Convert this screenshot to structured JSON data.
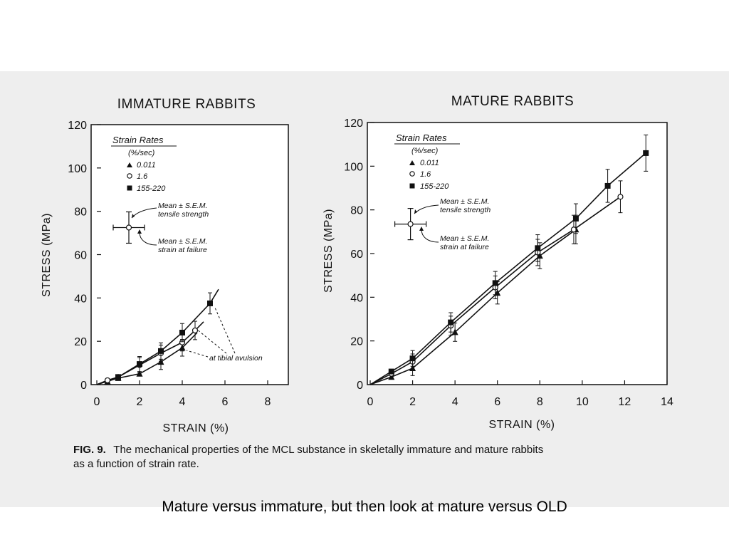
{
  "slide": {
    "subtitle": "Mature versus immature, but then look at mature versus OLD"
  },
  "figure": {
    "caption_label": "FIG. 9.",
    "caption_line1": "The mechanical properties of the MCL substance in skeletally immature and mature rabbits",
    "caption_line2": "as a function of strain rate."
  },
  "chart_data": [
    {
      "type": "line",
      "title": "IMMATURE RABBITS",
      "xlabel": "STRAIN (%)",
      "ylabel": "STRESS (MPa)",
      "xlim": [
        0,
        9
      ],
      "ylim": [
        0,
        120
      ],
      "xticks": [
        0,
        2,
        4,
        6,
        8
      ],
      "yticks": [
        0,
        20,
        40,
        60,
        80,
        100,
        120
      ],
      "grid": false,
      "legend": {
        "title": "Strain Rates",
        "units": "(%/sec)",
        "position": "top-left",
        "entries": [
          "0.011",
          "1.6",
          "155-220"
        ]
      },
      "series": [
        {
          "name": "0.011",
          "marker": "triangle-filled",
          "x": [
            0.5,
            1.0,
            2.0,
            3.0,
            4.0
          ],
          "y": [
            1.5,
            3.0,
            5.0,
            10.5,
            17.0
          ],
          "curve_end": [
            4.7,
            24.0
          ]
        },
        {
          "name": "1.6",
          "marker": "circle-open",
          "x": [
            0.5,
            1.0,
            2.0,
            3.0,
            4.0,
            4.6
          ],
          "y": [
            2.0,
            3.5,
            9.0,
            14.5,
            19.5,
            25.0
          ],
          "curve_end": [
            5.0,
            29.0
          ]
        },
        {
          "name": "155-220",
          "marker": "square-filled",
          "x": [
            1.0,
            2.0,
            3.0,
            4.0,
            5.3
          ],
          "y": [
            3.5,
            9.5,
            15.5,
            24.0,
            37.5
          ],
          "curve_end": [
            5.7,
            44.0
          ]
        }
      ],
      "reference_point": {
        "x": 1.5,
        "y": 72.5
      },
      "annotations": [
        "Mean ± S.E.M. tensile strength",
        "Mean ± S.E.M. strain at failure",
        "at tibial avulsion"
      ]
    },
    {
      "type": "line",
      "title": "MATURE RABBITS",
      "xlabel": "STRAIN (%)",
      "ylabel": "STRESS (MPa)",
      "xlim": [
        0,
        14
      ],
      "ylim": [
        0,
        120
      ],
      "xticks": [
        0,
        2,
        4,
        6,
        8,
        10,
        12,
        14
      ],
      "yticks": [
        0,
        20,
        40,
        60,
        80,
        100,
        120
      ],
      "grid": false,
      "legend": {
        "title": "Strain Rates",
        "units": "(%/sec)",
        "position": "top-left",
        "entries": [
          "0.011",
          "1.6",
          "155-220"
        ]
      },
      "series": [
        {
          "name": "0.011",
          "marker": "triangle-filled",
          "x": [
            1.0,
            2.0,
            4.0,
            6.0,
            8.0,
            9.7
          ],
          "y": [
            3.5,
            7.5,
            24.0,
            42.0,
            59.0,
            71.0
          ]
        },
        {
          "name": "1.6",
          "marker": "circle-open",
          "x": [
            1.0,
            2.0,
            3.8,
            5.9,
            7.9,
            9.6,
            11.8
          ],
          "y": [
            5.0,
            10.5,
            27.0,
            44.5,
            60.5,
            71.0,
            86.0
          ]
        },
        {
          "name": "155-220",
          "marker": "square-filled",
          "x": [
            1.0,
            2.0,
            3.8,
            5.9,
            7.9,
            9.7,
            11.2,
            13.0
          ],
          "y": [
            6.0,
            12.0,
            28.5,
            46.5,
            62.5,
            76.0,
            91.0,
            106.0
          ]
        }
      ],
      "reference_point": {
        "x": 1.9,
        "y": 73.5
      },
      "annotations": [
        "Mean ± S.E.M. tensile strength",
        "Mean ± S.E.M. strain at failure"
      ]
    }
  ]
}
